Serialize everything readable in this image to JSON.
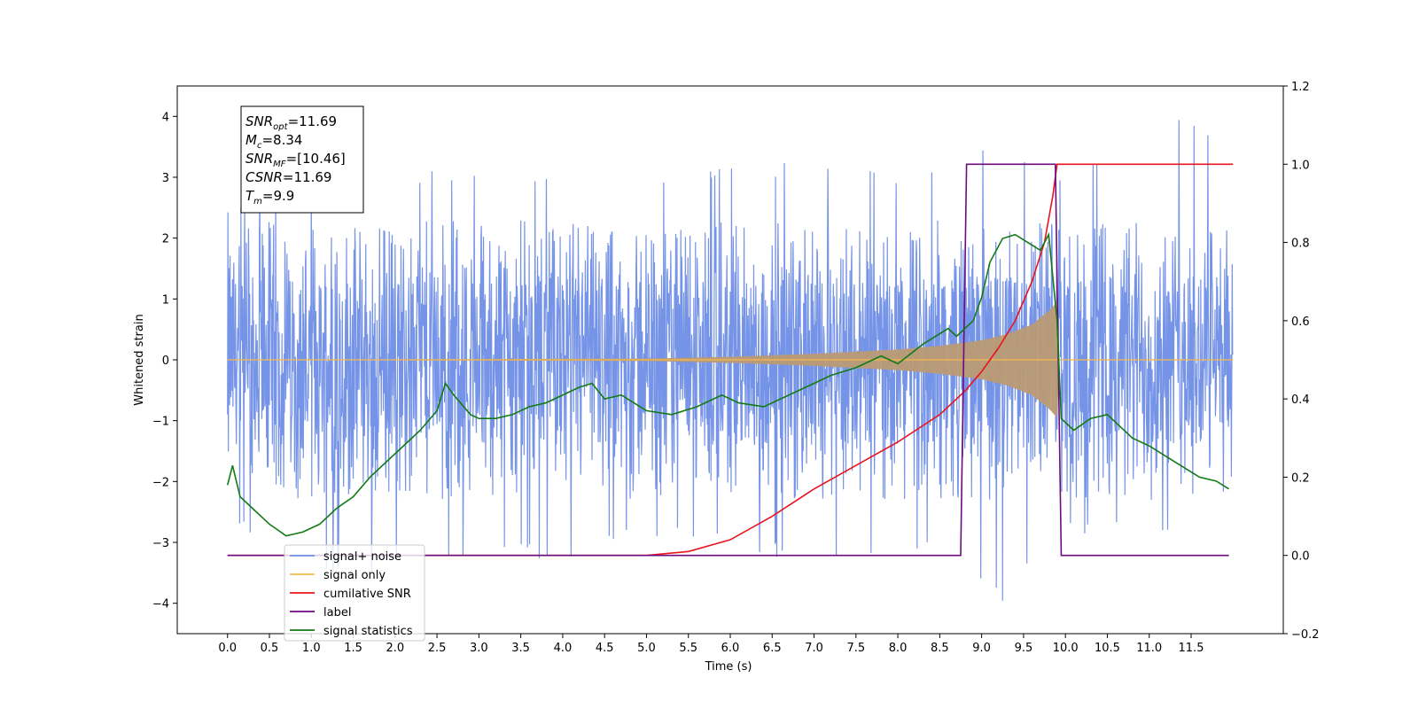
{
  "chart_data": {
    "type": "line",
    "title": "",
    "xlabel": "Time (s)",
    "ylabel": "Whitened strain",
    "y2label": "",
    "xlim": [
      -0.6,
      12.6
    ],
    "ylim": [
      -4.5,
      4.5
    ],
    "y2lim": [
      -0.2,
      1.2
    ],
    "x_ticks": [
      0.0,
      0.5,
      1.0,
      1.5,
      2.0,
      2.5,
      3.0,
      3.5,
      4.0,
      4.5,
      5.0,
      5.5,
      6.0,
      6.5,
      7.0,
      7.5,
      8.0,
      8.5,
      9.0,
      9.5,
      10.0,
      10.5,
      11.0,
      11.5
    ],
    "x_tick_labels": [
      "0.0",
      "0.5",
      "1.0",
      "1.5",
      "2.0",
      "2.5",
      "3.0",
      "3.5",
      "4.0",
      "4.5",
      "5.0",
      "5.5",
      "6.0",
      "6.5",
      "7.0",
      "7.5",
      "8.0",
      "8.5",
      "9.0",
      "9.5",
      "10.0",
      "10.5",
      "11.0",
      "11.5"
    ],
    "y_ticks": [
      -4,
      -3,
      -2,
      -1,
      0,
      1,
      2,
      3,
      4
    ],
    "y_tick_labels": [
      "−4",
      "−3",
      "−2",
      "−1",
      "0",
      "1",
      "2",
      "3",
      "4"
    ],
    "y2_ticks": [
      -0.2,
      0.0,
      0.2,
      0.4,
      0.6,
      0.8,
      1.0,
      1.2
    ],
    "y2_tick_labels": [
      "−0.2",
      "0.0",
      "0.2",
      "0.4",
      "0.6",
      "0.8",
      "1.0",
      "1.2"
    ],
    "grid": false,
    "legend_position": "bottom-left",
    "info_box": {
      "lines": [
        {
          "main": "SNR",
          "sub": "opt",
          "value": "=11.69"
        },
        {
          "main": "M",
          "sub": "c",
          "value": "=8.34"
        },
        {
          "main": "SNR",
          "sub": "MF",
          "value": "=[10.46]"
        },
        {
          "main": "CSNR",
          "sub": "",
          "value": "=11.69"
        },
        {
          "main": "T",
          "sub": "m",
          "value": "=9.9"
        }
      ]
    },
    "series": [
      {
        "name": "signal+ noise",
        "axis": "left",
        "color": "#6f8ee6",
        "kind": "noise",
        "x_range": [
          0.0,
          12.0
        ],
        "envelope": {
          "x": [
            0.0,
            1.0,
            2.0,
            3.0,
            4.0,
            5.0,
            6.0,
            7.0,
            8.0,
            8.8,
            9.2,
            9.6,
            9.9,
            10.0,
            11.0,
            12.0
          ],
          "max": [
            2.5,
            3.3,
            3.2,
            3.1,
            3.3,
            3.0,
            3.2,
            3.4,
            3.2,
            3.2,
            3.8,
            3.5,
            3.4,
            3.0,
            4.1,
            4.0
          ],
          "min": [
            -2.6,
            -3.9,
            -3.4,
            -3.4,
            -3.3,
            -3.0,
            -3.0,
            -3.5,
            -3.1,
            -3.4,
            -4.1,
            -3.5,
            -3.3,
            -2.9,
            -3.0,
            -3.1
          ]
        }
      },
      {
        "name": "signal only",
        "axis": "left",
        "color": "#f5b94d",
        "kind": "chirp",
        "amplitude": {
          "x": [
            0.0,
            5.0,
            6.0,
            7.0,
            8.0,
            8.5,
            9.0,
            9.3,
            9.6,
            9.8,
            9.9,
            9.93,
            12.0
          ],
          "y": [
            0.0,
            0.02,
            0.05,
            0.1,
            0.17,
            0.23,
            0.32,
            0.42,
            0.58,
            0.8,
            0.95,
            0.0,
            0.0
          ]
        }
      },
      {
        "name": "cumilative SNR",
        "axis": "right",
        "color": "#e8141e",
        "x": [
          0.0,
          5.0,
          5.5,
          6.0,
          6.5,
          7.0,
          7.5,
          8.0,
          8.5,
          8.8,
          9.0,
          9.2,
          9.4,
          9.6,
          9.75,
          9.85,
          9.9,
          12.0
        ],
        "y": [
          0.0,
          0.0,
          0.01,
          0.04,
          0.1,
          0.17,
          0.23,
          0.29,
          0.36,
          0.42,
          0.47,
          0.53,
          0.6,
          0.7,
          0.8,
          0.92,
          1.0,
          1.0
        ]
      },
      {
        "name": "label",
        "axis": "right",
        "color": "#6c0a7e",
        "x": [
          0.0,
          8.75,
          8.82,
          9.88,
          9.95,
          11.95
        ],
        "y": [
          0.0,
          0.0,
          1.0,
          1.0,
          0.0,
          0.0
        ]
      },
      {
        "name": "signal statistics",
        "axis": "right",
        "color": "#147a14",
        "x": [
          0.0,
          0.06,
          0.15,
          0.3,
          0.5,
          0.7,
          0.9,
          1.1,
          1.3,
          1.5,
          1.7,
          1.9,
          2.1,
          2.3,
          2.5,
          2.6,
          2.7,
          2.9,
          3.0,
          3.2,
          3.4,
          3.6,
          3.8,
          4.0,
          4.2,
          4.35,
          4.5,
          4.7,
          5.0,
          5.3,
          5.6,
          5.9,
          6.1,
          6.4,
          6.7,
          7.0,
          7.2,
          7.5,
          7.8,
          8.0,
          8.3,
          8.6,
          8.7,
          8.9,
          9.0,
          9.1,
          9.25,
          9.4,
          9.55,
          9.7,
          9.8,
          9.9,
          9.95,
          10.1,
          10.3,
          10.5,
          10.8,
          11.0,
          11.3,
          11.6,
          11.8,
          11.95
        ],
        "y": [
          0.18,
          0.23,
          0.15,
          0.12,
          0.08,
          0.05,
          0.06,
          0.08,
          0.12,
          0.15,
          0.2,
          0.24,
          0.28,
          0.32,
          0.37,
          0.44,
          0.41,
          0.36,
          0.35,
          0.35,
          0.36,
          0.38,
          0.39,
          0.41,
          0.43,
          0.44,
          0.4,
          0.41,
          0.37,
          0.36,
          0.38,
          0.41,
          0.39,
          0.38,
          0.41,
          0.44,
          0.46,
          0.48,
          0.51,
          0.49,
          0.54,
          0.58,
          0.56,
          0.6,
          0.66,
          0.75,
          0.81,
          0.82,
          0.8,
          0.78,
          0.82,
          0.6,
          0.35,
          0.32,
          0.35,
          0.36,
          0.3,
          0.28,
          0.24,
          0.2,
          0.19,
          0.17
        ]
      }
    ],
    "legend": [
      {
        "label": "signal+ noise",
        "color": "#6f8ee6"
      },
      {
        "label": "signal only",
        "color": "#f5b94d"
      },
      {
        "label": "cumilative SNR",
        "color": "#e8141e"
      },
      {
        "label": "label",
        "color": "#6c0a7e"
      },
      {
        "label": "signal statistics",
        "color": "#147a14"
      }
    ]
  }
}
